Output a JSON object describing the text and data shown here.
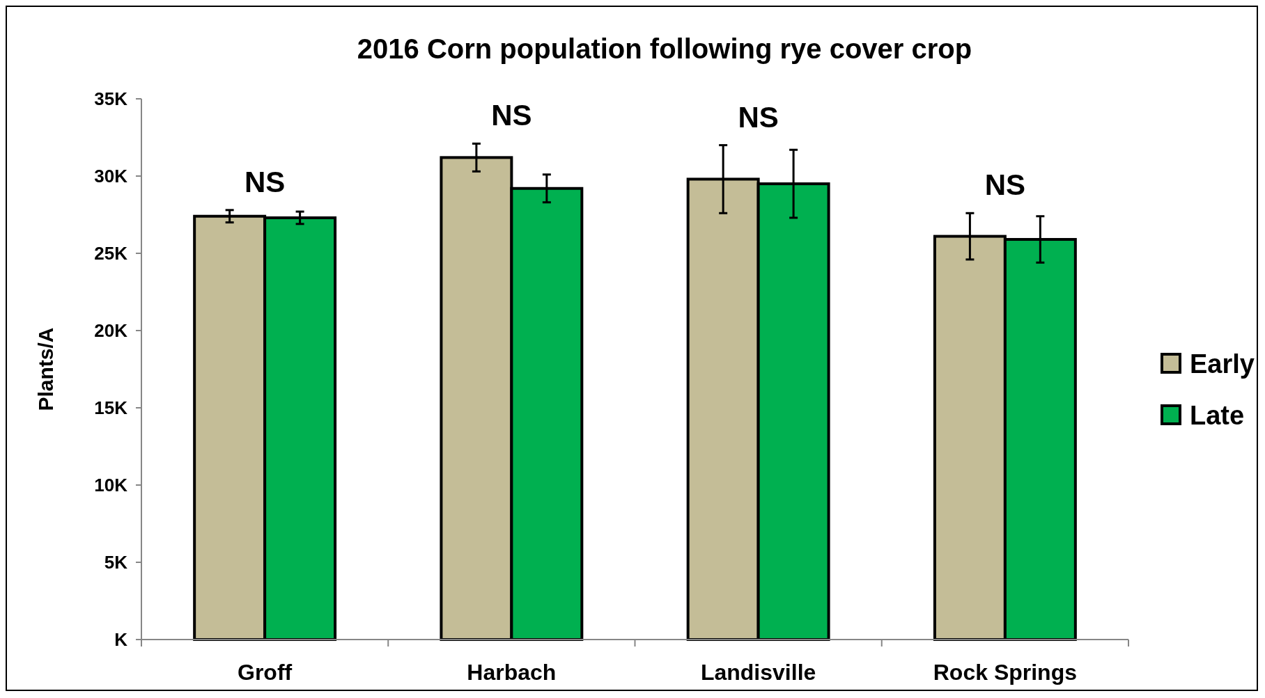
{
  "chart_data": {
    "type": "bar",
    "title": "2016 Corn population following rye cover crop",
    "ylabel": "Plants/A",
    "categories": [
      "Groff",
      "Harbach",
      "Landisville",
      "Rock Springs"
    ],
    "series": [
      {
        "name": "Early",
        "color": "#c4bd97",
        "values": [
          27400,
          31200,
          29800,
          26100
        ],
        "errors": [
          400,
          900,
          2200,
          1500
        ]
      },
      {
        "name": "Late",
        "color": "#00b050",
        "values": [
          27300,
          29200,
          29500,
          25900
        ],
        "errors": [
          400,
          900,
          2200,
          1500
        ]
      }
    ],
    "ylim": [
      0,
      35000
    ],
    "yticks": [
      {
        "value": 0,
        "label": "K"
      },
      {
        "value": 5000,
        "label": "5K"
      },
      {
        "value": 10000,
        "label": "10K"
      },
      {
        "value": 15000,
        "label": "15K"
      },
      {
        "value": 20000,
        "label": "20K"
      },
      {
        "value": 25000,
        "label": "25K"
      },
      {
        "value": 30000,
        "label": "30K"
      },
      {
        "value": 35000,
        "label": "35K"
      }
    ],
    "annotations": [
      "NS",
      "NS",
      "NS",
      "NS"
    ],
    "grid": false,
    "legend": "right"
  }
}
